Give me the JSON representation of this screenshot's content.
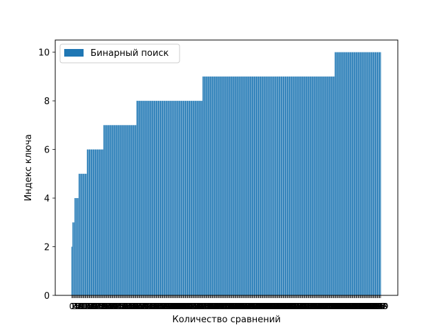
{
  "chart_data": {
    "type": "bar",
    "title": "",
    "xlabel": "Количество сравнений",
    "ylabel": "Индекс ключа",
    "ylim": [
      0,
      10.5
    ],
    "yticks": [
      0,
      2,
      4,
      6,
      8,
      10
    ],
    "grid": false,
    "legend": {
      "position": "top-left",
      "entries": [
        "Бинарный поиск"
      ]
    },
    "series": [
      {
        "name": "Бинарный поиск",
        "color": "#1f77b4",
        "runs": [
          {
            "value": 2,
            "count": 1
          },
          {
            "value": 3,
            "count": 2
          },
          {
            "value": 4,
            "count": 4
          },
          {
            "value": 5,
            "count": 8
          },
          {
            "value": 6,
            "count": 16
          },
          {
            "value": 7,
            "count": 32
          },
          {
            "value": 8,
            "count": 64
          },
          {
            "value": 9,
            "count": 128
          },
          {
            "value": 10,
            "count": 45
          }
        ]
      }
    ],
    "x_tick_labels_note": "dense overlapping numeric tick labels under every bar"
  }
}
